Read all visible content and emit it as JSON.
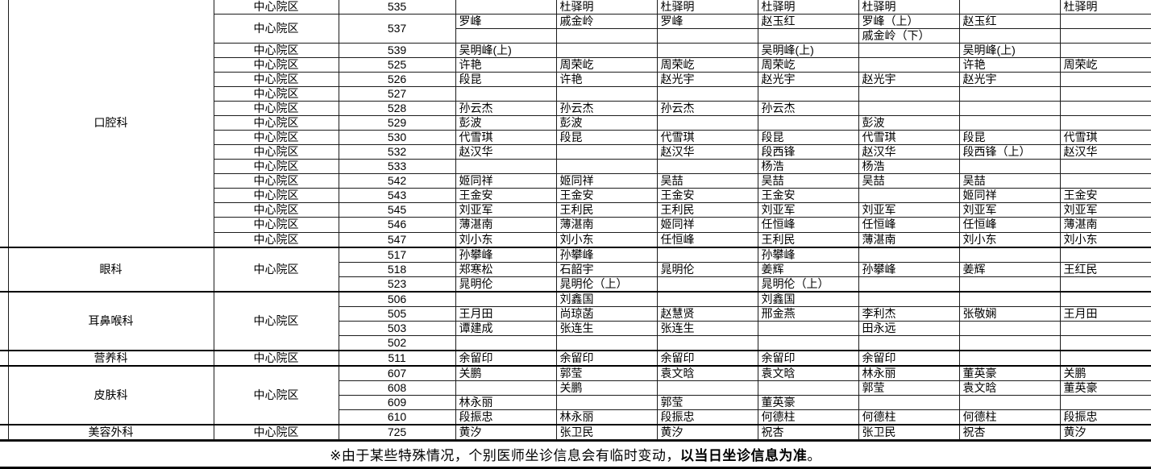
{
  "table": {
    "campus_label": "中心院区",
    "sections": [
      {
        "dept": "口腔科",
        "campus_merged": false,
        "rows": [
          {
            "room": "535",
            "cells": [
              "",
              "杜驿明",
              "杜驿明",
              "杜驿明",
              "杜驿明",
              "",
              "杜驿明"
            ]
          },
          {
            "room": "537",
            "cells": [
              "罗峰",
              "戚金岭",
              "罗峰",
              "赵玉红",
              "罗峰（上）",
              "赵玉红",
              ""
            ],
            "cells2": [
              "",
              "",
              "",
              "",
              "戚金岭（下）",
              "",
              ""
            ]
          },
          {
            "room": "539",
            "cells": [
              "吴明峰(上)",
              "",
              "",
              "吴明峰(上)",
              "",
              "吴明峰(上)",
              ""
            ]
          },
          {
            "room": "525",
            "cells": [
              "许艳",
              "周荣屹",
              "周荣屹",
              "周荣屹",
              "",
              "许艳",
              "周荣屹"
            ]
          },
          {
            "room": "526",
            "cells": [
              "段昆",
              "许艳",
              "赵光宇",
              "赵光宇",
              "赵光宇",
              "赵光宇",
              ""
            ]
          },
          {
            "room": "527",
            "cells": [
              "",
              "",
              "",
              "",
              "",
              "",
              ""
            ]
          },
          {
            "room": "528",
            "cells": [
              "孙云杰",
              "孙云杰",
              "孙云杰",
              "孙云杰",
              "",
              "",
              ""
            ]
          },
          {
            "room": "529",
            "cells": [
              "彭波",
              "彭波",
              "",
              "",
              "彭波",
              "",
              ""
            ]
          },
          {
            "room": "530",
            "cells": [
              "代雪琪",
              "段昆",
              "代雪琪",
              "段昆",
              "代雪琪",
              "段昆",
              "代雪琪"
            ]
          },
          {
            "room": "532",
            "cells": [
              "赵汉华",
              "",
              "赵汉华",
              "段西锋",
              "赵汉华",
              "段西锋（上）",
              "赵汉华"
            ]
          },
          {
            "room": "533",
            "cells": [
              "",
              "",
              "",
              "杨浩",
              "杨浩",
              "",
              ""
            ]
          },
          {
            "room": "542",
            "cells": [
              "姬同祥",
              "姬同祥",
              "吴喆",
              "吴喆",
              "吴喆",
              "吴喆",
              ""
            ]
          },
          {
            "room": "543",
            "cells": [
              "王金安",
              "王金安",
              "王金安",
              "王金安",
              "",
              "姬同祥",
              "王金安"
            ]
          },
          {
            "room": "545",
            "cells": [
              "刘亚军",
              "王利民",
              "王利民",
              "刘亚军",
              "刘亚军",
              "刘亚军",
              "刘亚军"
            ]
          },
          {
            "room": "546",
            "cells": [
              "薄湛南",
              "薄湛南",
              "姬同祥",
              "任恒峰",
              "任恒峰",
              "任恒峰",
              "薄湛南"
            ]
          },
          {
            "room": "547",
            "cells": [
              "刘小东",
              "刘小东",
              "任恒峰",
              "王利民",
              "薄湛南",
              "刘小东",
              "刘小东"
            ]
          }
        ]
      },
      {
        "dept": "眼科",
        "campus_merged": true,
        "rows": [
          {
            "room": "517",
            "cells": [
              "孙攀峰",
              "孙攀峰",
              "",
              "孙攀峰",
              "",
              "",
              ""
            ]
          },
          {
            "room": "518",
            "cells": [
              "郑寒松",
              "石韶宇",
              "晁明伦",
              "姜辉",
              "孙攀峰",
              "姜辉",
              "王红民"
            ]
          },
          {
            "room": "523",
            "cells": [
              "晁明伦",
              "晁明伦（上）",
              "",
              "晁明伦（上）",
              "",
              "",
              ""
            ]
          }
        ]
      },
      {
        "dept": "耳鼻喉科",
        "campus_merged": true,
        "rows": [
          {
            "room": "506",
            "cells": [
              "",
              "刘鑫国",
              "",
              "刘鑫国",
              "",
              "",
              ""
            ]
          },
          {
            "room": "505",
            "cells": [
              "王月田",
              "尚琼菡",
              "赵慧贤",
              "邢金燕",
              "李利杰",
              "张敬娴",
              "王月田"
            ]
          },
          {
            "room": "503",
            "cells": [
              "谭建成",
              "张连生",
              "张连生",
              "",
              "田永远",
              "",
              ""
            ]
          },
          {
            "room": "502",
            "cells": [
              "",
              "",
              "",
              "",
              "",
              "",
              ""
            ]
          }
        ]
      },
      {
        "dept": "营养科",
        "campus_merged": true,
        "rows": [
          {
            "room": "511",
            "cells": [
              "余留印",
              "余留印",
              "余留印",
              "余留印",
              "余留印",
              "",
              ""
            ]
          }
        ]
      },
      {
        "dept": "皮肤科",
        "campus_merged": true,
        "rows": [
          {
            "room": "607",
            "cells": [
              "关鹏",
              "郭莹",
              "袁文晗",
              "袁文晗",
              "林永丽",
              "董英豪",
              "关鹏"
            ]
          },
          {
            "room": "608",
            "cells": [
              "",
              "关鹏",
              "",
              "",
              "郭莹",
              "袁文晗",
              "董英豪"
            ]
          },
          {
            "room": "609",
            "cells": [
              "林永丽",
              "",
              "郭莹",
              "董英豪",
              "",
              "",
              ""
            ]
          },
          {
            "room": "610",
            "cells": [
              "段振忠",
              "林永丽",
              "段振忠",
              "何德柱",
              "何德柱",
              "何德柱",
              "段振忠"
            ]
          }
        ]
      },
      {
        "dept": "美容外科",
        "campus_merged": true,
        "rows": [
          {
            "room": "725",
            "cells": [
              "黄汐",
              "张卫民",
              "黄汐",
              "祝杏",
              "张卫民",
              "祝杏",
              "黄汐"
            ]
          }
        ]
      }
    ],
    "note": {
      "prefix": "※由于某些特殊情况，个别医师坐诊信息会有临时变动，",
      "bold": "以当日坐诊信息为准",
      "suffix": "。"
    }
  }
}
